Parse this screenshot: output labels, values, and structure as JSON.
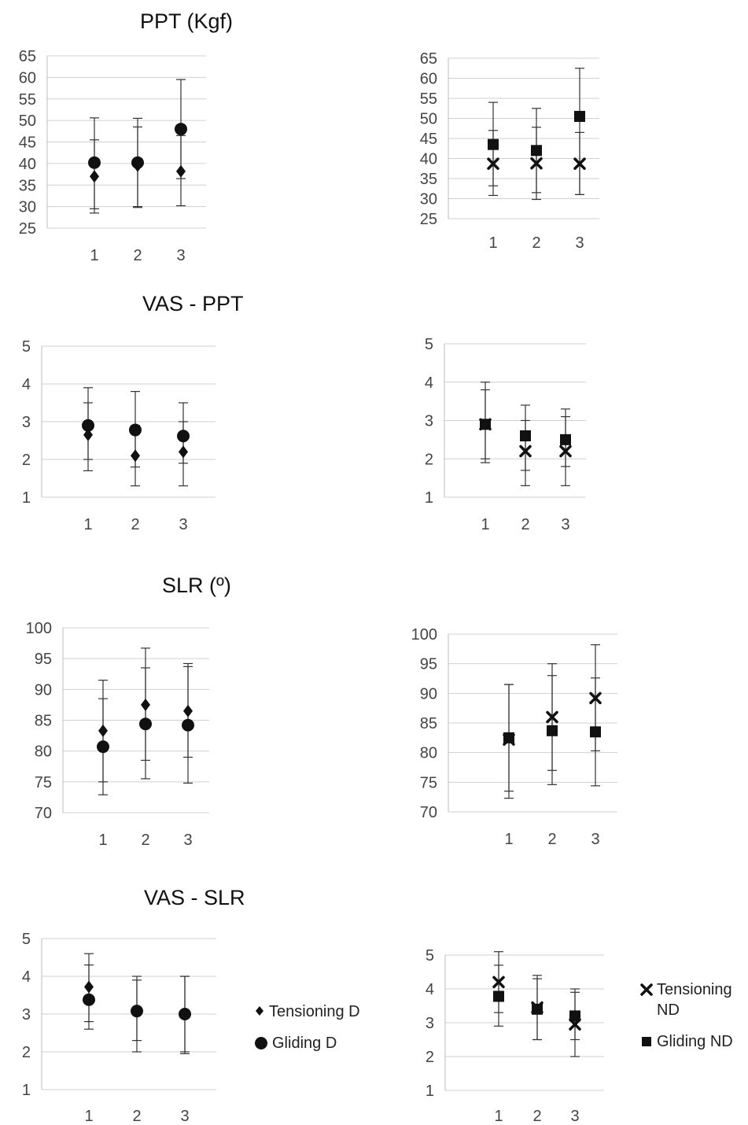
{
  "section_titles": [
    "PPT (Kgf)",
    "VAS - PPT",
    "SLR (º)",
    "VAS - SLR"
  ],
  "legend_dominant": [
    {
      "label": "Tensioning D",
      "marker": "diamond"
    },
    {
      "label": "Gliding D",
      "marker": "circle"
    }
  ],
  "legend_nondominant": [
    {
      "label": "Tensioning ND",
      "marker": "x"
    },
    {
      "label": "Gliding ND",
      "marker": "square"
    }
  ],
  "chart_data": [
    {
      "type": "scatter",
      "title": "PPT (Kgf)",
      "side": "D",
      "categories": [
        "1",
        "2",
        "3"
      ],
      "ylim": [
        25,
        65
      ],
      "yticks": [
        25,
        30,
        35,
        40,
        45,
        50,
        55,
        60,
        65
      ],
      "grid": true,
      "series": [
        {
          "name": "Tensioning D",
          "marker": "diamond",
          "values": [
            37,
            39.5,
            38.2
          ],
          "err_low": [
            29.5,
            30,
            36.5
          ],
          "err_high": [
            45.5,
            48.5,
            46.5
          ]
        },
        {
          "name": "Gliding D",
          "marker": "circle",
          "values": [
            40.2,
            40.2,
            48
          ],
          "err_low": [
            28.5,
            29.8,
            30.2
          ],
          "err_high": [
            50.6,
            50.5,
            59.5
          ]
        }
      ]
    },
    {
      "type": "scatter",
      "title": "",
      "side": "ND",
      "categories": [
        "1",
        "2",
        "3"
      ],
      "ylim": [
        25,
        65
      ],
      "yticks": [
        25,
        30,
        35,
        40,
        45,
        50,
        55,
        60,
        65
      ],
      "grid": true,
      "series": [
        {
          "name": "Tensioning ND",
          "marker": "x",
          "values": [
            38.7,
            38.8,
            38.7
          ],
          "err_low": [
            33.2,
            31.5,
            31
          ],
          "err_high": [
            47,
            47.8,
            46.5
          ]
        },
        {
          "name": "Gliding ND",
          "marker": "square",
          "values": [
            43.5,
            42,
            50.5
          ],
          "err_low": [
            30.8,
            29.8,
            31
          ],
          "err_high": [
            54,
            52.5,
            62.5
          ]
        }
      ]
    },
    {
      "type": "scatter",
      "title": "VAS - PPT",
      "side": "D",
      "categories": [
        "1",
        "2",
        "3"
      ],
      "ylim": [
        1,
        5
      ],
      "yticks": [
        1,
        2,
        3,
        4,
        5
      ],
      "grid": true,
      "series": [
        {
          "name": "Tensioning D",
          "marker": "diamond",
          "values": [
            2.65,
            2.1,
            2.2
          ],
          "err_low": [
            1.7,
            1.3,
            1.3
          ],
          "err_high": [
            3.5,
            2.9,
            3.0
          ]
        },
        {
          "name": "Gliding D",
          "marker": "circle",
          "values": [
            2.9,
            2.78,
            2.62
          ],
          "err_low": [
            2.0,
            1.8,
            1.9
          ],
          "err_high": [
            3.9,
            3.8,
            3.5
          ]
        }
      ]
    },
    {
      "type": "scatter",
      "title": "",
      "side": "ND",
      "categories": [
        "1",
        "2",
        "3"
      ],
      "ylim": [
        1,
        5
      ],
      "yticks": [
        1,
        2,
        3,
        4,
        5
      ],
      "grid": true,
      "series": [
        {
          "name": "Tensioning ND",
          "marker": "x",
          "values": [
            2.9,
            2.2,
            2.2
          ],
          "err_low": [
            1.9,
            1.3,
            1.3
          ],
          "err_high": [
            3.8,
            3.0,
            3.1
          ]
        },
        {
          "name": "Gliding ND",
          "marker": "square",
          "values": [
            2.9,
            2.6,
            2.5
          ],
          "err_low": [
            2.0,
            1.7,
            1.8
          ],
          "err_high": [
            4.0,
            3.4,
            3.3
          ]
        }
      ]
    },
    {
      "type": "scatter",
      "title": "SLR (º)",
      "side": "D",
      "categories": [
        "1",
        "2",
        "3"
      ],
      "ylim": [
        70,
        100
      ],
      "yticks": [
        70,
        75,
        80,
        85,
        90,
        95,
        100
      ],
      "grid": true,
      "series": [
        {
          "name": "Tensioning D",
          "marker": "diamond",
          "values": [
            83.3,
            87.5,
            86.5
          ],
          "err_low": [
            75,
            78.5,
            79
          ],
          "err_high": [
            91.5,
            96.7,
            94.2
          ]
        },
        {
          "name": "Gliding D",
          "marker": "circle",
          "values": [
            80.7,
            84.4,
            84.2
          ],
          "err_low": [
            72.9,
            75.5,
            74.8
          ],
          "err_high": [
            88.5,
            93.5,
            93.7
          ]
        }
      ]
    },
    {
      "type": "scatter",
      "title": "",
      "side": "ND",
      "categories": [
        "1",
        "2",
        "3"
      ],
      "ylim": [
        70,
        100
      ],
      "yticks": [
        70,
        75,
        80,
        85,
        90,
        95,
        100
      ],
      "grid": true,
      "series": [
        {
          "name": "Tensioning ND",
          "marker": "x",
          "values": [
            82.2,
            86,
            89.2
          ],
          "err_low": [
            72.3,
            77,
            80.3
          ],
          "err_high": [
            91.5,
            95,
            98.2
          ]
        },
        {
          "name": "Gliding ND",
          "marker": "square",
          "values": [
            82.5,
            83.7,
            83.5
          ],
          "err_low": [
            73.5,
            74.6,
            74.4
          ],
          "err_high": [
            91.5,
            93,
            92.6
          ]
        }
      ]
    },
    {
      "type": "scatter",
      "title": "VAS - SLR",
      "side": "D",
      "categories": [
        "1",
        "2",
        "3"
      ],
      "ylim": [
        1,
        5
      ],
      "yticks": [
        1,
        2,
        3,
        4,
        5
      ],
      "grid": true,
      "series": [
        {
          "name": "Tensioning D",
          "marker": "diamond",
          "values": [
            3.72,
            3.08,
            3.0
          ],
          "err_low": [
            2.8,
            2.3,
            2.0
          ],
          "err_high": [
            4.6,
            3.9,
            4.0
          ]
        },
        {
          "name": "Gliding D",
          "marker": "circle",
          "values": [
            3.38,
            3.08,
            3.0
          ],
          "err_low": [
            2.6,
            2.0,
            1.95
          ],
          "err_high": [
            4.3,
            4.0,
            4.0
          ]
        }
      ]
    },
    {
      "type": "scatter",
      "title": "",
      "side": "ND",
      "categories": [
        "1",
        "2",
        "3"
      ],
      "ylim": [
        1,
        5
      ],
      "yticks": [
        1,
        2,
        3,
        4,
        5
      ],
      "grid": true,
      "series": [
        {
          "name": "Tensioning ND",
          "marker": "x",
          "values": [
            4.2,
            3.45,
            2.95
          ],
          "err_low": [
            3.3,
            2.5,
            2.0
          ],
          "err_high": [
            5.1,
            4.4,
            3.9
          ]
        },
        {
          "name": "Gliding ND",
          "marker": "square",
          "values": [
            3.78,
            3.4,
            3.2
          ],
          "err_low": [
            2.9,
            2.5,
            2.5
          ],
          "err_high": [
            4.7,
            4.3,
            4.0
          ]
        }
      ]
    }
  ]
}
